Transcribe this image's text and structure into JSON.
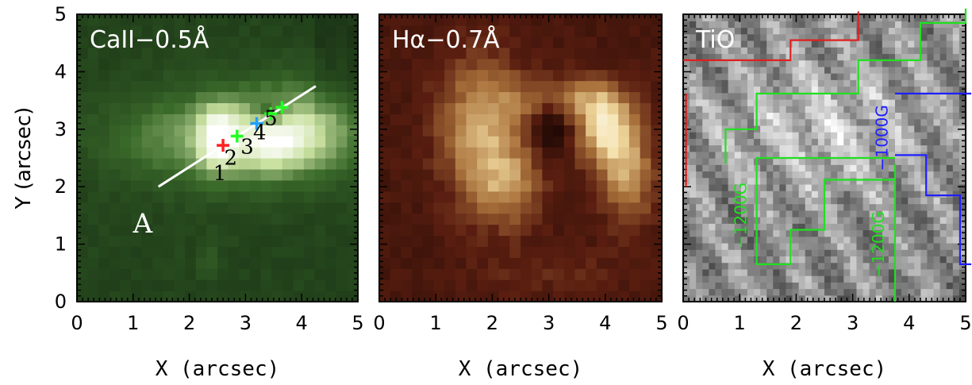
{
  "chart_data": [
    {
      "type": "heatmap",
      "title": "CaII−0.5Å",
      "xlabel": "X (arcsec)",
      "ylabel": "Y (arcsec)",
      "xlim": [
        0,
        5
      ],
      "ylim": [
        0,
        5
      ],
      "xticks": [
        "0",
        "1",
        "2",
        "3",
        "4",
        "5"
      ],
      "yticks": [
        "0",
        "1",
        "2",
        "3",
        "4",
        "5"
      ],
      "colormap": [
        "#0e1f0e",
        "#3a6a2a",
        "#c9e0a0",
        "#ffffff"
      ],
      "slit": {
        "label": "A",
        "x": [
          1.45,
          4.25
        ],
        "y": [
          2.0,
          3.75
        ]
      },
      "points": [
        {
          "label": "1",
          "x": 2.6,
          "y": 2.72,
          "color": "#ff2020"
        },
        {
          "label": "2",
          "x": 2.85,
          "y": 2.88,
          "color": "#20ff20"
        },
        {
          "label": "3",
          "x": 3.2,
          "y": 3.1,
          "color": "#20a0ff"
        },
        {
          "label": "4",
          "x": 3.45,
          "y": 3.27,
          "color": "#20ff20"
        },
        {
          "label": "5",
          "x": 3.65,
          "y": 3.38,
          "color": "#20ff20"
        }
      ]
    },
    {
      "type": "heatmap",
      "title": "Hα−0.7Å",
      "xlabel": "X (arcsec)",
      "xlim": [
        0,
        5
      ],
      "ylim": [
        0,
        5
      ],
      "xticks": [
        "0",
        "1",
        "2",
        "3",
        "4",
        "5"
      ],
      "colormap": [
        "#240a06",
        "#5a1e10",
        "#a8703a",
        "#f2dca0",
        "#ffffff"
      ]
    },
    {
      "type": "heatmap",
      "title": "TiO",
      "xlabel": "X (arcsec)",
      "xlim": [
        0,
        5
      ],
      "ylim": [
        0,
        5
      ],
      "xticks": [
        "0",
        "1",
        "2",
        "3",
        "4",
        "5"
      ],
      "colormap": [
        "#1a1a1a",
        "#8a8a8a",
        "#ffffff"
      ],
      "contours": [
        {
          "label": "−1000G",
          "color": "#2020ff"
        },
        {
          "label": "−1200G",
          "color": "#20e020"
        },
        {
          "label": "−1200G",
          "color": "#20e020"
        },
        {
          "label": "",
          "color": "#e02020"
        }
      ]
    }
  ]
}
